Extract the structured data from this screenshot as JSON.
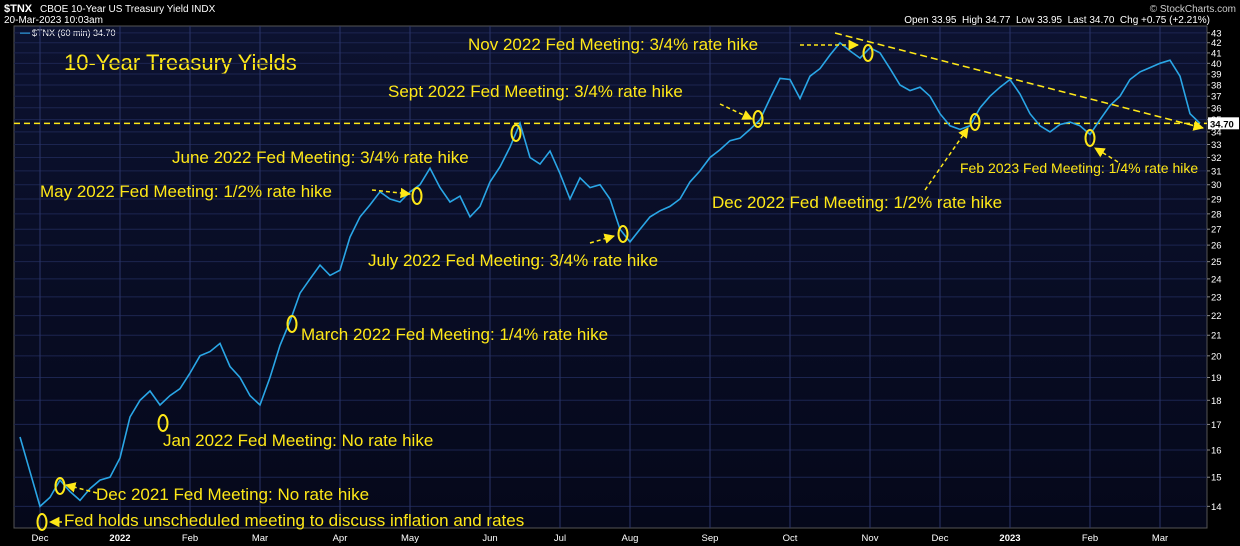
{
  "chart_data": {
    "type": "line",
    "header": {
      "symbol": "$TNX",
      "name": "CBOE 10-Year US Treasury Yield INDX",
      "date": "20-Mar-2023 10:03am",
      "quote": "Open 33.95  High 34.77  Low 33.95  Last 34.70  Chg +0.75 (+2.21%)",
      "copyright": "© StockCharts.com"
    },
    "title": "10-Year Treasury Yields",
    "log_scale": true,
    "grid": true,
    "ylim": [
      13.3,
      43.7
    ],
    "yticks": [
      14,
      15,
      16,
      17,
      18,
      19,
      20,
      21,
      22,
      23,
      24,
      25,
      26,
      27,
      28,
      29,
      30,
      31,
      32,
      33,
      34,
      35,
      36,
      37,
      38,
      39,
      40,
      41,
      42,
      43
    ],
    "reference_line": {
      "value": 34.7,
      "label": "34.70"
    },
    "categories": [
      null,
      null,
      "Dec",
      null,
      null,
      null,
      null,
      null,
      null,
      null,
      "2022",
      null,
      null,
      null,
      null,
      null,
      null,
      "Feb",
      null,
      null,
      null,
      null,
      null,
      null,
      "Mar",
      null,
      null,
      null,
      null,
      null,
      null,
      null,
      "Apr",
      null,
      null,
      null,
      null,
      null,
      null,
      "May",
      null,
      null,
      null,
      null,
      null,
      null,
      null,
      "Jun",
      null,
      null,
      null,
      null,
      null,
      null,
      "Jul",
      null,
      null,
      null,
      null,
      null,
      null,
      "Aug",
      null,
      null,
      null,
      null,
      null,
      null,
      null,
      "Sep",
      null,
      null,
      null,
      null,
      null,
      null,
      null,
      "Oct",
      null,
      null,
      null,
      null,
      null,
      null,
      null,
      "Nov",
      null,
      null,
      null,
      null,
      null,
      null,
      "Dec",
      null,
      null,
      null,
      null,
      null,
      null,
      "2023",
      null,
      null,
      null,
      null,
      null,
      null,
      null,
      "Feb",
      null,
      null,
      null,
      null,
      null,
      null,
      "Mar",
      null,
      null,
      null,
      null
    ],
    "series": [
      {
        "name": "$TNX (60 min) 34.70",
        "color": "#2aa6e6",
        "values": [
          16.5,
          15.2,
          14.0,
          14.3,
          14.9,
          14.5,
          14.2,
          14.6,
          14.9,
          15.0,
          15.7,
          17.3,
          18.0,
          18.4,
          17.8,
          18.2,
          18.5,
          19.2,
          20.0,
          20.2,
          20.6,
          19.5,
          19.0,
          18.2,
          17.8,
          19.0,
          20.5,
          21.7,
          23.2,
          24.0,
          24.8,
          24.2,
          24.5,
          26.5,
          27.8,
          28.6,
          29.5,
          29.0,
          28.8,
          29.5,
          30.0,
          31.2,
          29.8,
          28.8,
          29.2,
          27.8,
          28.5,
          30.2,
          31.3,
          32.8,
          34.7,
          32.0,
          31.5,
          32.5,
          30.8,
          29.0,
          30.5,
          29.8,
          30.0,
          29.0,
          27.0,
          26.2,
          27.0,
          27.8,
          28.2,
          28.5,
          29.0,
          30.2,
          31.0,
          32.0,
          32.6,
          33.3,
          33.5,
          34.2,
          35.0,
          36.8,
          38.6,
          38.5,
          36.8,
          38.8,
          39.5,
          40.8,
          42.0,
          41.2,
          40.5,
          41.5,
          41.0,
          39.5,
          38.0,
          37.5,
          37.8,
          37.0,
          35.5,
          34.5,
          34.2,
          34.5,
          36.0,
          37.0,
          37.8,
          38.5,
          37.2,
          35.5,
          34.5,
          34.0,
          34.6,
          34.8,
          34.5,
          33.8,
          35.0,
          36.2,
          37.0,
          38.5,
          39.2,
          39.6,
          40.0,
          40.3,
          38.8,
          35.5,
          34.7
        ]
      }
    ],
    "annotations": [
      "Nov 2022 Fed Meeting: 3/4% rate hike",
      "Sept 2022 Fed Meeting: 3/4% rate hike",
      "June 2022 Fed Meeting: 3/4% rate hike",
      "May 2022 Fed Meeting: 1/2% rate hike",
      "July 2022 Fed Meeting: 3/4% rate hike",
      "Dec 2022 Fed Meeting: 1/2% rate hike",
      "Feb 2023 Fed Meeting: 1/4% rate hike",
      "March 2022 Fed Meeting: 1/4% rate hike",
      "Jan 2022 Fed Meeting: No rate hike",
      "Dec 2021 Fed Meeting: No rate hike",
      "Fed holds unscheduled meeting to discuss inflation and rates"
    ]
  }
}
